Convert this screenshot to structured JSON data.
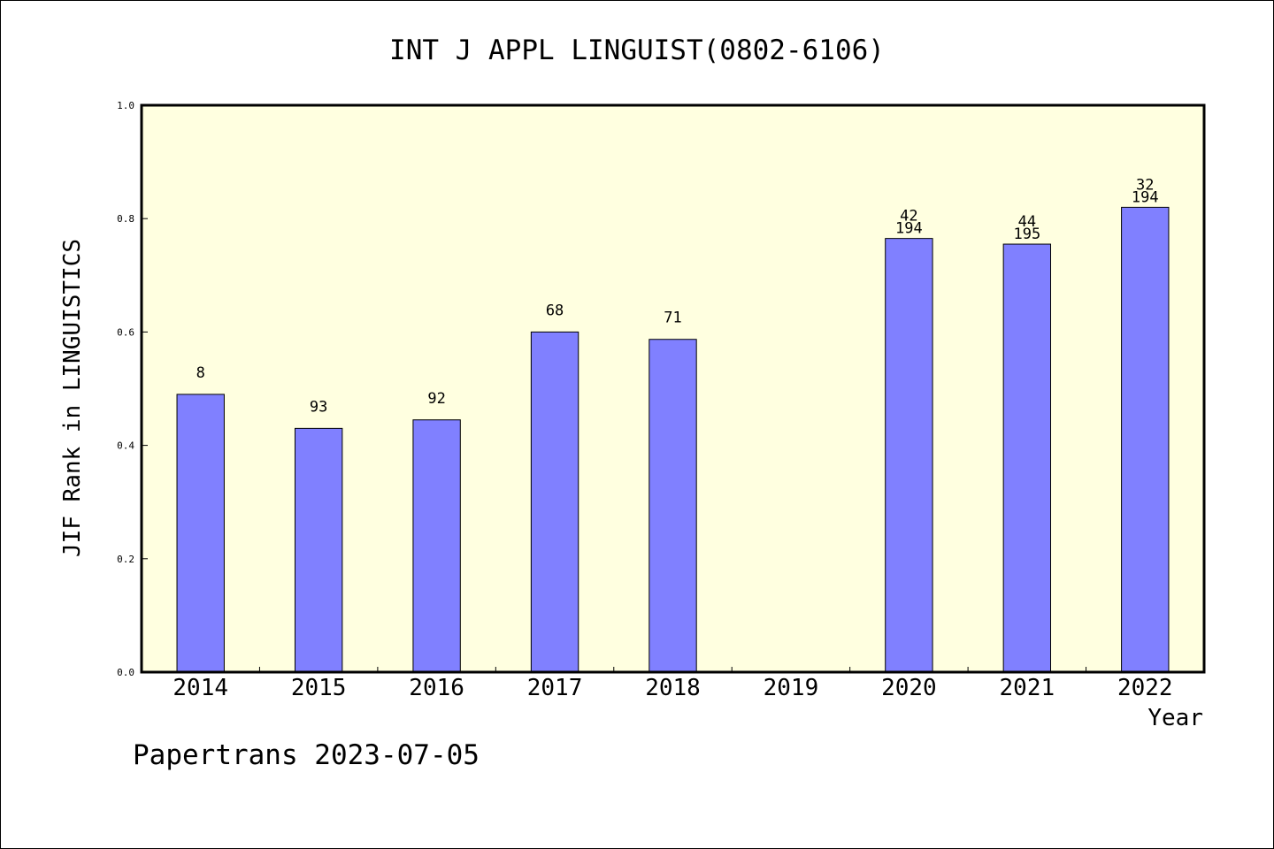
{
  "chart_data": {
    "type": "bar",
    "title": "INT J APPL LINGUIST(0802-6106)",
    "xlabel": "Year",
    "ylabel": "JIF Rank in LINGUISTICS",
    "categories": [
      "2014",
      "2015",
      "2016",
      "2017",
      "2018",
      "2019",
      "2020",
      "2021",
      "2022"
    ],
    "values": [
      0.49,
      0.43,
      0.445,
      0.6,
      0.587,
      null,
      0.765,
      0.755,
      0.82
    ],
    "bar_labels": [
      [
        "8"
      ],
      [
        "93"
      ],
      [
        "92"
      ],
      [
        "68"
      ],
      [
        "71"
      ],
      [],
      [
        "42",
        "194"
      ],
      [
        "44",
        "195"
      ],
      [
        "32",
        "194"
      ]
    ],
    "ylim": [
      0,
      1.0
    ],
    "yticks": [
      "0.0",
      "0.2",
      "0.4",
      "0.6",
      "0.8",
      "1.0"
    ],
    "grid": false,
    "colors": {
      "bar": "#8080ff",
      "plot_background": "#ffffe0",
      "frame": "#000000"
    }
  },
  "footer": {
    "credit": "Papertrans 2023-07-05"
  }
}
